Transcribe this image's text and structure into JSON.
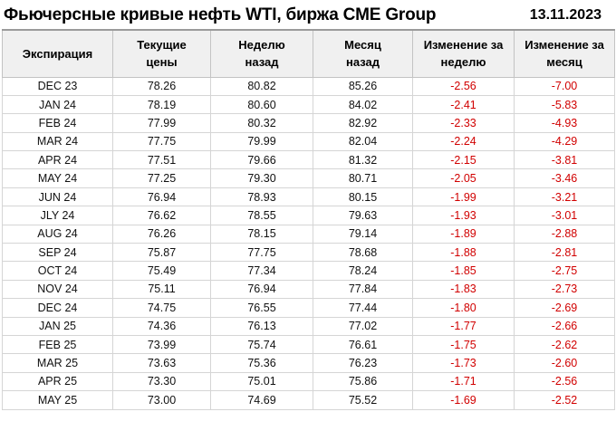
{
  "header": {
    "title": "Фьючерсные кривые нефть WTI, биржа CME Group",
    "date": "13.11.2023"
  },
  "colors": {
    "negative_change": "#d10000",
    "header_bg": "#f0f0f0",
    "cell_border": "#d5d5d5",
    "header_border": "#c3c3c3",
    "header_top_border": "#9a9a9a"
  },
  "chart_data": {
    "type": "table",
    "title": "Фьючерсные кривые нефть WTI, биржа CME Group",
    "date": "13.11.2023",
    "columns": [
      "Экспирация",
      "Текущие\nцены",
      "Неделю\nназад",
      "Месяц\nназад",
      "Изменение за\nнеделю",
      "Изменение за\nмесяц"
    ],
    "rows": [
      [
        "DEC 23",
        "78.26",
        "80.82",
        "85.26",
        "-2.56",
        "-7.00"
      ],
      [
        "JAN 24",
        "78.19",
        "80.60",
        "84.02",
        "-2.41",
        "-5.83"
      ],
      [
        "FEB 24",
        "77.99",
        "80.32",
        "82.92",
        "-2.33",
        "-4.93"
      ],
      [
        "MAR 24",
        "77.75",
        "79.99",
        "82.04",
        "-2.24",
        "-4.29"
      ],
      [
        "APR 24",
        "77.51",
        "79.66",
        "81.32",
        "-2.15",
        "-3.81"
      ],
      [
        "MAY 24",
        "77.25",
        "79.30",
        "80.71",
        "-2.05",
        "-3.46"
      ],
      [
        "JUN 24",
        "76.94",
        "78.93",
        "80.15",
        "-1.99",
        "-3.21"
      ],
      [
        "JLY 24",
        "76.62",
        "78.55",
        "79.63",
        "-1.93",
        "-3.01"
      ],
      [
        "AUG 24",
        "76.26",
        "78.15",
        "79.14",
        "-1.89",
        "-2.88"
      ],
      [
        "SEP 24",
        "75.87",
        "77.75",
        "78.68",
        "-1.88",
        "-2.81"
      ],
      [
        "OCT 24",
        "75.49",
        "77.34",
        "78.24",
        "-1.85",
        "-2.75"
      ],
      [
        "NOV 24",
        "75.11",
        "76.94",
        "77.84",
        "-1.83",
        "-2.73"
      ],
      [
        "DEC 24",
        "74.75",
        "76.55",
        "77.44",
        "-1.80",
        "-2.69"
      ],
      [
        "JAN 25",
        "74.36",
        "76.13",
        "77.02",
        "-1.77",
        "-2.66"
      ],
      [
        "FEB 25",
        "73.99",
        "75.74",
        "76.61",
        "-1.75",
        "-2.62"
      ],
      [
        "MAR 25",
        "73.63",
        "75.36",
        "76.23",
        "-1.73",
        "-2.60"
      ],
      [
        "APR 25",
        "73.30",
        "75.01",
        "75.86",
        "-1.71",
        "-2.56"
      ],
      [
        "MAY 25",
        "73.00",
        "74.69",
        "75.52",
        "-1.69",
        "-2.52"
      ]
    ]
  }
}
